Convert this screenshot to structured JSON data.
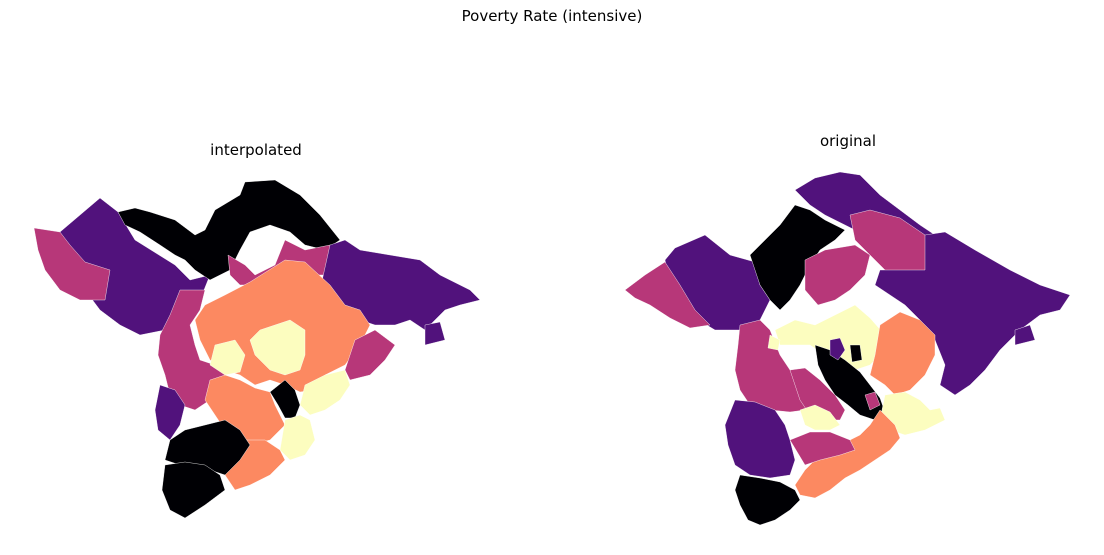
{
  "figure": {
    "title": "Poverty Rate (intensive)"
  },
  "colors": {
    "bin0": "#000004",
    "bin1": "#51127c",
    "bin2": "#b73779",
    "bin3": "#fc8961",
    "bin4": "#fcfdbf"
  },
  "chart_data": [
    {
      "type": "choropleth",
      "title": "interpolated",
      "color_scheme": "magma",
      "classes": 5,
      "legend": "none",
      "axes": "off"
    },
    {
      "type": "choropleth",
      "title": "original",
      "color_scheme": "magma",
      "classes": 5,
      "legend": "none",
      "axes": "off"
    }
  ]
}
